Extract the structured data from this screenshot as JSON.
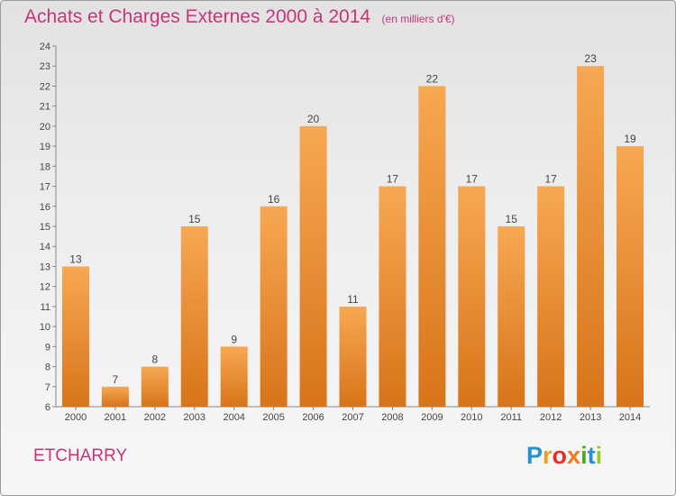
{
  "title": "Achats et Charges Externes 2000 à 2014",
  "unit": "(en milliers d'€)",
  "commune": "ETCHARRY",
  "logo": "Proxiti",
  "colors": {
    "bar_top": "#f7a852",
    "bar_bottom": "#d8741a",
    "title": "#c8347a"
  },
  "chart_data": {
    "type": "bar",
    "categories": [
      "2000",
      "2001",
      "2002",
      "2003",
      "2004",
      "2005",
      "2006",
      "2007",
      "2008",
      "2009",
      "2010",
      "2011",
      "2012",
      "2013",
      "2014"
    ],
    "values": [
      13,
      7,
      8,
      15,
      9,
      16,
      20,
      11,
      17,
      22,
      17,
      15,
      17,
      23,
      19
    ],
    "title": "Achats et Charges Externes 2000 à 2014",
    "subtitle": "(en milliers d'€)",
    "ylim": [
      6,
      24
    ],
    "yticks": [
      6,
      7,
      8,
      9,
      10,
      11,
      12,
      13,
      14,
      15,
      16,
      17,
      18,
      19,
      20,
      21,
      22,
      23,
      24
    ],
    "grid": false,
    "legend": "none"
  }
}
